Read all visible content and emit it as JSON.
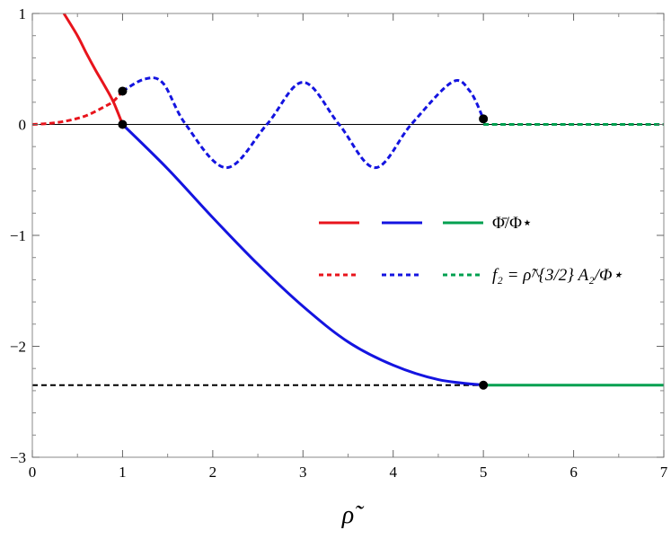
{
  "chart_data": {
    "type": "line",
    "title": "",
    "xlabel": "ρ̃",
    "ylabel": "",
    "xlim": [
      0,
      7
    ],
    "ylim": [
      -3,
      1
    ],
    "x_ticks": [
      "0",
      "1",
      "2",
      "3",
      "4",
      "5",
      "6",
      "7"
    ],
    "y_ticks": [
      "1",
      "0",
      "−1",
      "−2",
      "−3"
    ],
    "grid": false,
    "legend_position": "center-right",
    "legend": [
      {
        "label": "Φ̄/Φ⋆",
        "style": "solid"
      },
      {
        "label": "f₂ = ρ̃^{3/2} A₂/Φ⋆",
        "style": "dashed"
      }
    ],
    "colors": {
      "red": "#e8141c",
      "blue": "#1414e0",
      "green": "#00a050",
      "black": "#000000"
    },
    "series": [
      {
        "color": "red",
        "style": "solid",
        "points": [
          [
            0.35,
            1.0
          ],
          [
            0.5,
            0.8
          ],
          [
            0.6,
            0.64
          ],
          [
            0.7,
            0.49
          ],
          [
            0.8,
            0.35
          ],
          [
            0.9,
            0.2
          ],
          [
            1.0,
            0.0
          ]
        ]
      },
      {
        "color": "red",
        "style": "dashed",
        "points": [
          [
            0.0,
            0.0
          ],
          [
            0.2,
            0.01
          ],
          [
            0.4,
            0.035
          ],
          [
            0.6,
            0.08
          ],
          [
            0.8,
            0.16
          ],
          [
            0.9,
            0.21
          ],
          [
            1.0,
            0.3
          ]
        ]
      },
      {
        "color": "blue",
        "style": "solid",
        "points": [
          [
            1.0,
            0.0
          ],
          [
            1.5,
            -0.4
          ],
          [
            2.0,
            -0.84
          ],
          [
            2.5,
            -1.26
          ],
          [
            3.0,
            -1.64
          ],
          [
            3.5,
            -1.96
          ],
          [
            4.0,
            -2.17
          ],
          [
            4.5,
            -2.3
          ],
          [
            5.0,
            -2.35
          ]
        ]
      },
      {
        "color": "blue",
        "style": "dashed",
        "points": [
          [
            1.0,
            0.3
          ],
          [
            1.25,
            0.41
          ],
          [
            1.45,
            0.37
          ],
          [
            1.7,
            0.0
          ],
          [
            2.15,
            -0.39
          ],
          [
            2.6,
            0.0
          ],
          [
            3.0,
            0.38
          ],
          [
            3.4,
            0.0
          ],
          [
            3.8,
            -0.39
          ],
          [
            4.2,
            0.0
          ],
          [
            4.65,
            0.38
          ],
          [
            4.85,
            0.3
          ],
          [
            5.0,
            0.05
          ]
        ]
      },
      {
        "color": "green",
        "style": "solid",
        "points": [
          [
            5.0,
            -2.35
          ],
          [
            7.0,
            -2.35
          ]
        ]
      },
      {
        "color": "green",
        "style": "dashed",
        "points": [
          [
            5.0,
            0.0
          ],
          [
            7.0,
            0.0
          ]
        ]
      },
      {
        "color": "black",
        "style": "dashed",
        "points": [
          [
            0.0,
            -2.35
          ],
          [
            5.0,
            -2.35
          ]
        ]
      },
      {
        "color": "black",
        "style": "thin",
        "points": [
          [
            0.0,
            0.0
          ],
          [
            7.0,
            0.0
          ]
        ]
      }
    ],
    "markers": [
      [
        1.0,
        0.3
      ],
      [
        1.0,
        0.0
      ],
      [
        5.0,
        0.05
      ],
      [
        5.0,
        -2.35
      ]
    ]
  }
}
